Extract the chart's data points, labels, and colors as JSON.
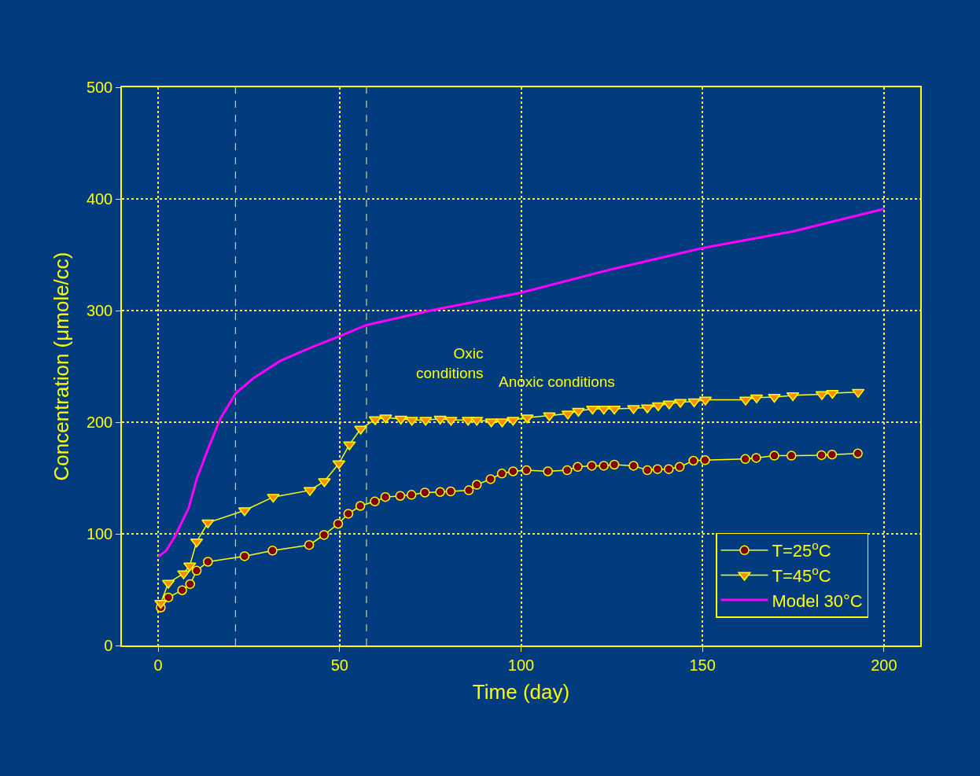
{
  "chart_data": {
    "type": "line",
    "xlabel": "Time (day)",
    "ylabel": "Concentration (μmole/cc)",
    "xlim": [
      -10,
      210
    ],
    "xticks": [
      0,
      50,
      100,
      150,
      200
    ],
    "ylim": [
      0,
      500
    ],
    "yticks": [
      0,
      100,
      200,
      300,
      400,
      500
    ],
    "grid": true,
    "legend": "bottom right",
    "series": [
      {
        "name": "T=25$^{o}$C",
        "color": "#800000",
        "marker": "circle",
        "x": [
          0.7,
          2.8,
          6.6,
          8.8,
          10.6,
          13.7,
          23.8,
          31.5,
          41.6,
          45.7,
          49.6,
          52.4,
          55.7,
          59.7,
          62.6,
          66.7,
          69.8,
          73.5,
          77.7,
          80.6,
          85.6,
          87.8,
          91.6,
          94.7,
          97.8,
          101.5,
          107.4,
          112.7,
          115.6,
          119.5,
          122.8,
          125.7,
          131,
          134.8,
          137.6,
          140.7,
          143.7,
          147.5,
          150.7,
          161.8,
          164.8,
          169.8,
          174.5,
          182.8,
          185.7,
          192.8
        ],
        "values": [
          34,
          43,
          49.5,
          55,
          67,
          75,
          80,
          85,
          90,
          99,
          109,
          118,
          125,
          129,
          133,
          134,
          135,
          137,
          137.5,
          138,
          139,
          144,
          149,
          154,
          156,
          157,
          156,
          157,
          160,
          161,
          161,
          162,
          161,
          157,
          158,
          158,
          160,
          165.5,
          166,
          167,
          168,
          170,
          170,
          170.5,
          171,
          172
        ]
      },
      {
        "name": "T=45$^{o}$C",
        "color": "#ff8c00",
        "marker": "triangle",
        "x": [
          0.7,
          2.8,
          7,
          8.7,
          10.6,
          13.7,
          23.8,
          31.7,
          41.8,
          45.8,
          49.8,
          52.7,
          55.8,
          59.8,
          62.7,
          66.9,
          69.9,
          73.7,
          77.7,
          80.7,
          85.4,
          87.8,
          91.8,
          94.8,
          97.8,
          101.7,
          107.8,
          112.9,
          115.8,
          119.7,
          122.8,
          125.7,
          131,
          134.8,
          137.8,
          140.8,
          143.9,
          147.7,
          150.8,
          161.9,
          164.9,
          169.8,
          174.9,
          182.9,
          185.8,
          192.9
        ],
        "values": [
          38,
          56,
          64.5,
          71.5,
          93,
          110,
          121,
          133,
          139,
          147,
          163,
          180,
          194,
          202.5,
          204,
          203,
          202,
          202,
          203,
          202,
          202,
          202,
          200.5,
          200.5,
          202,
          204,
          206,
          207.5,
          210,
          212,
          212,
          212,
          212.5,
          213,
          215,
          216.5,
          218,
          218.5,
          220,
          220,
          222,
          222.5,
          224,
          225,
          226,
          227
        ]
      },
      {
        "name": "Model 30°C",
        "color": "#ff00ff",
        "marker": "none",
        "x": [
          0,
          0.5,
          2.2,
          4.5,
          8.4,
          10.6,
          13.5,
          17.1,
          21.4,
          26.5,
          33.7,
          43,
          50,
          57.4,
          75,
          100,
          125,
          150,
          175,
          200
        ],
        "values": [
          80,
          80.5,
          85,
          97,
          123,
          149,
          174,
          203,
          226,
          240,
          255,
          268,
          277,
          287,
          300,
          316,
          337,
          356,
          371,
          391
        ]
      }
    ],
    "ref_lines": [
      {
        "axis": "x",
        "value": 21.3,
        "color": "#d8d86a",
        "line_style": "dashed"
      },
      {
        "axis": "x",
        "value": 57.4,
        "color": "#d8d86a",
        "line_style": "dashed"
      }
    ],
    "annotations": [
      "Oxic\nconditions",
      "Anoxic conditions"
    ]
  }
}
